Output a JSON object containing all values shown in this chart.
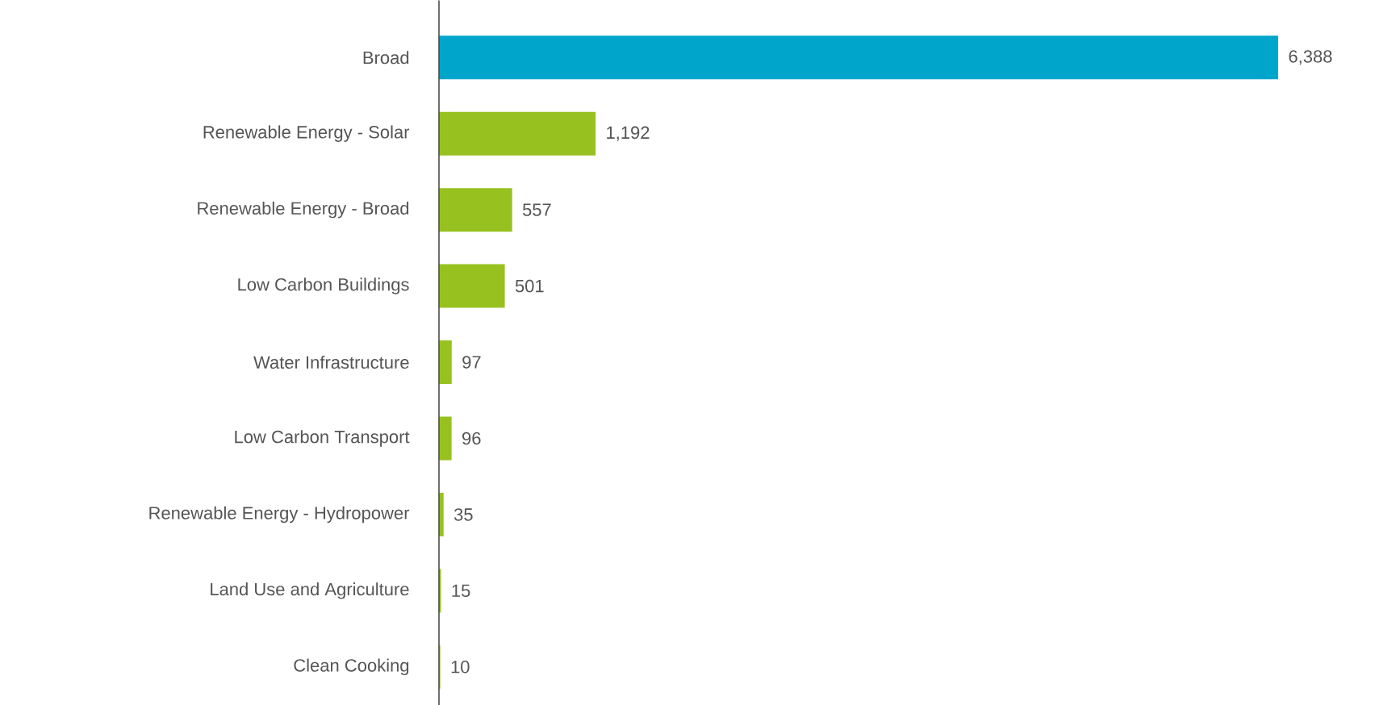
{
  "chart_data": {
    "type": "bar",
    "orientation": "horizontal",
    "categories": [
      "Broad",
      "Renewable Energy - Solar",
      "Renewable Energy - Broad",
      "Low Carbon Buildings",
      "Water Infrastructure",
      "Low Carbon Transport",
      "Renewable Energy - Hydropower",
      "Land Use and Agriculture",
      "Clean Cooking"
    ],
    "values": [
      6388,
      1192,
      557,
      501,
      97,
      96,
      35,
      15,
      10
    ],
    "value_labels": [
      "6,388",
      "1,192",
      "557",
      "501",
      "97",
      "96",
      "35",
      "15",
      "10"
    ],
    "colors": [
      "#00a5cc",
      "#97c11f",
      "#97c11f",
      "#97c11f",
      "#97c11f",
      "#97c11f",
      "#97c11f",
      "#97c11f",
      "#97c11f"
    ]
  }
}
